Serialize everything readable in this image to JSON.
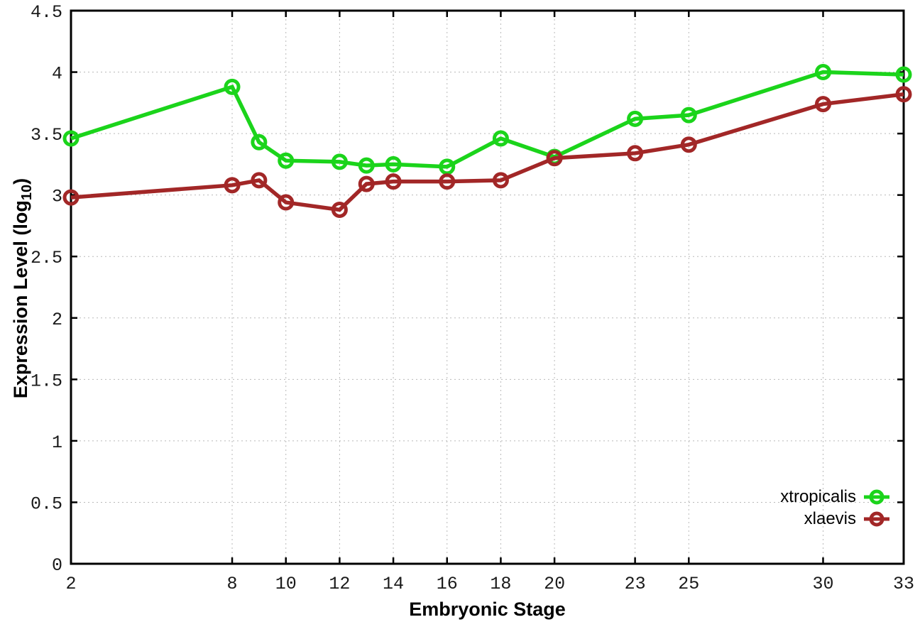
{
  "figure": {
    "background": "#ffffff"
  },
  "styles": {
    "grid_color": "#b9b9b9",
    "axis_color": "#000000",
    "tick_label_color": "#1a1a1a"
  },
  "chart_data": {
    "type": "line",
    "title": "",
    "xlabel": "Embryonic Stage",
    "ylabel": {
      "text": "Expression Level (log",
      "subscript": "10",
      "suffix": ")"
    },
    "x": [
      2,
      8,
      9,
      10,
      12,
      13,
      14,
      16,
      18,
      20,
      23,
      25,
      30,
      33
    ],
    "series": [
      {
        "name": "xtropicalis",
        "color": "#1bd41b",
        "values": [
          3.46,
          3.88,
          3.43,
          3.28,
          3.27,
          3.24,
          3.25,
          3.23,
          3.46,
          3.31,
          3.62,
          3.65,
          4.0,
          3.98
        ]
      },
      {
        "name": "xlaevis",
        "color": "#a22727",
        "values": [
          2.98,
          3.08,
          3.12,
          2.94,
          2.88,
          3.09,
          3.11,
          3.11,
          3.12,
          3.3,
          3.34,
          3.41,
          3.74,
          3.82
        ]
      }
    ],
    "xlim": [
      2,
      33
    ],
    "ylim": [
      0,
      4.5
    ],
    "xticks": [
      2,
      8,
      10,
      12,
      14,
      16,
      18,
      20,
      23,
      25,
      30,
      33
    ],
    "xtick_labels": [
      "2",
      "8",
      "10",
      "12",
      "14",
      "16",
      "18",
      "20",
      "23",
      "25",
      "30",
      "33"
    ],
    "yticks": [
      0,
      0.5,
      1,
      1.5,
      2,
      2.5,
      3,
      3.5,
      4,
      4.5
    ],
    "ytick_labels": [
      "0",
      "0.5",
      "1",
      "1.5",
      "2",
      "2.5",
      "3",
      "3.5",
      "4",
      "4.5"
    ],
    "grid": true,
    "legend_position": "bottom-right",
    "marker": "open-circle"
  }
}
